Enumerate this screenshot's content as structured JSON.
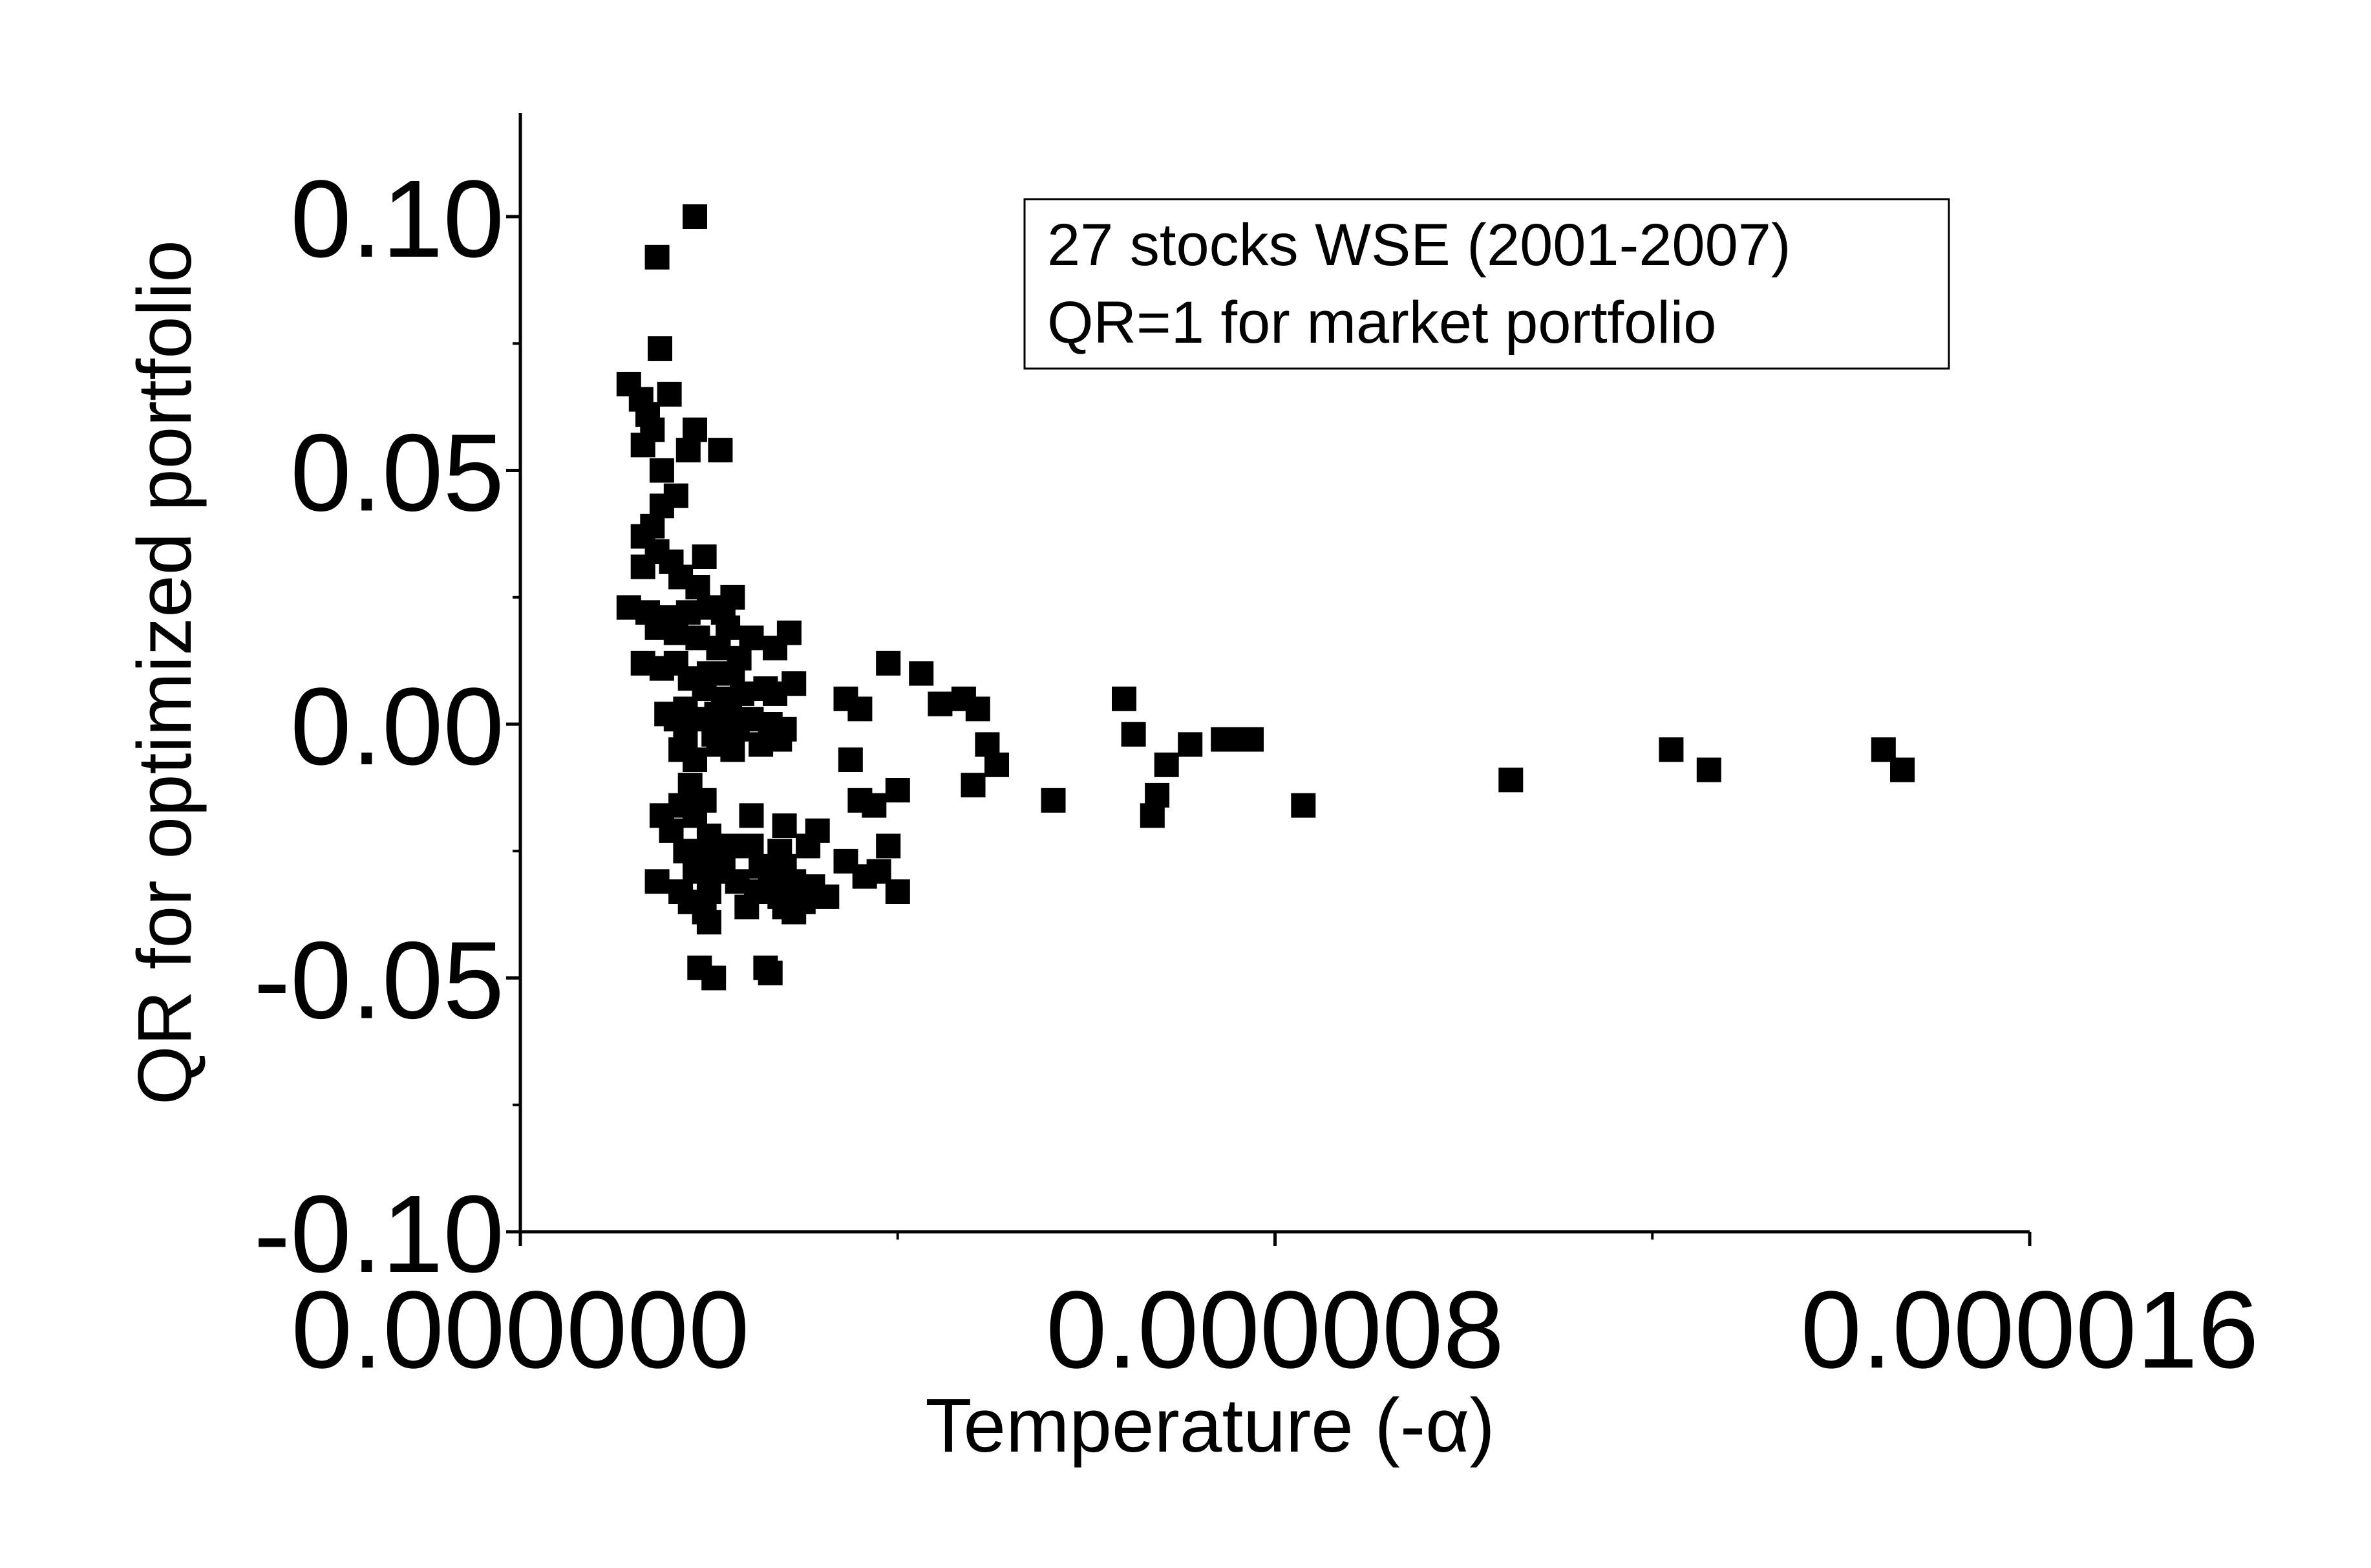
{
  "chart_data": {
    "type": "scatter",
    "title": "",
    "xlabel": "Temperature (-α)",
    "ylabel": "QR for optimized portfolio",
    "xlim": [
      0,
      1.6e-05
    ],
    "ylim": [
      -0.1,
      0.12
    ],
    "x_ticks": [
      {
        "value": 0,
        "label": "0.000000"
      },
      {
        "value": 8e-06,
        "label": "0.000008"
      },
      {
        "value": 1.6e-05,
        "label": "0.000016"
      }
    ],
    "x_minor_ticks": [
      4e-06,
      1.2e-05
    ],
    "y_ticks": [
      {
        "value": 0.1,
        "label": "0.10"
      },
      {
        "value": 0.05,
        "label": "0.05"
      },
      {
        "value": 0.0,
        "label": "0.00"
      },
      {
        "value": -0.05,
        "label": "-0.05"
      },
      {
        "value": -0.1,
        "label": "-0.10"
      }
    ],
    "y_minor_ticks": [
      0.075,
      0.025,
      -0.025,
      -0.075
    ],
    "grid": false,
    "legend_position": "top-right",
    "annotation": [
      "27 stocks WSE (2001-2007)",
      "QR=1 for market portfolio"
    ],
    "marker": {
      "shape": "square",
      "color": "#000000"
    },
    "points": [
      [
        1.85e-06,
        0.1
      ],
      [
        1.45e-06,
        0.092
      ],
      [
        1.48e-06,
        0.074
      ],
      [
        1.15e-06,
        0.067
      ],
      [
        1.28e-06,
        0.064
      ],
      [
        1.58e-06,
        0.065
      ],
      [
        1.35e-06,
        0.061
      ],
      [
        1.4e-06,
        0.058
      ],
      [
        1.3e-06,
        0.055
      ],
      [
        1.85e-06,
        0.058
      ],
      [
        1.78e-06,
        0.054
      ],
      [
        2.12e-06,
        0.054
      ],
      [
        1.5e-06,
        0.05
      ],
      [
        1.65e-06,
        0.045
      ],
      [
        1.5e-06,
        0.043
      ],
      [
        1.4e-06,
        0.039
      ],
      [
        1.3e-06,
        0.037
      ],
      [
        1.45e-06,
        0.034
      ],
      [
        1.6e-06,
        0.032
      ],
      [
        1.95e-06,
        0.033
      ],
      [
        1.3e-06,
        0.031
      ],
      [
        1.7e-06,
        0.029
      ],
      [
        1.88e-06,
        0.027
      ],
      [
        2.25e-06,
        0.025
      ],
      [
        1.15e-06,
        0.023
      ],
      [
        1.35e-06,
        0.022
      ],
      [
        1.58e-06,
        0.021
      ],
      [
        1.78e-06,
        0.022
      ],
      [
        2e-06,
        0.023
      ],
      [
        2.15e-06,
        0.022
      ],
      [
        1.45e-06,
        0.019
      ],
      [
        1.65e-06,
        0.018
      ],
      [
        1.88e-06,
        0.017
      ],
      [
        2.2e-06,
        0.019
      ],
      [
        2.45e-06,
        0.017
      ],
      [
        2.85e-06,
        0.018
      ],
      [
        2.1e-06,
        0.015
      ],
      [
        2.32e-06,
        0.013
      ],
      [
        2.7e-06,
        0.015
      ],
      [
        1.3e-06,
        0.012
      ],
      [
        1.5e-06,
        0.011
      ],
      [
        1.65e-06,
        0.012
      ],
      [
        2e-06,
        0.01
      ],
      [
        2.25e-06,
        0.01
      ],
      [
        1.8e-06,
        0.009
      ],
      [
        1.95e-06,
        0.007
      ],
      [
        2.15e-06,
        0.005
      ],
      [
        2.35e-06,
        0.006
      ],
      [
        2.6e-06,
        0.007
      ],
      [
        2.9e-06,
        0.008
      ],
      [
        2.7e-06,
        0.006
      ],
      [
        1.75e-06,
        0.003
      ],
      [
        2.08e-06,
        0.002
      ],
      [
        2.22e-06,
        0.003
      ],
      [
        1.55e-06,
        0.002
      ],
      [
        1.65e-06,
        0.001
      ],
      [
        1.9e-06,
        0.001
      ],
      [
        2.45e-06,
        0.001
      ],
      [
        2.65e-06,
        0.0
      ],
      [
        2.3e-06,
        -0.001
      ],
      [
        2.05e-06,
        -0.002
      ],
      [
        2.8e-06,
        -0.001
      ],
      [
        1.75e-06,
        -0.003
      ],
      [
        2.1e-06,
        -0.004
      ],
      [
        2.25e-06,
        -0.005
      ],
      [
        2.55e-06,
        -0.004
      ],
      [
        2.75e-06,
        -0.003
      ],
      [
        1.7e-06,
        -0.005
      ],
      [
        1.85e-06,
        -0.007
      ],
      [
        3.9e-06,
        0.012
      ],
      [
        4.25e-06,
        0.01
      ],
      [
        4.45e-06,
        0.004
      ],
      [
        4.7e-06,
        0.005
      ],
      [
        4.85e-06,
        0.003
      ],
      [
        3.45e-06,
        0.005
      ],
      [
        3.6e-06,
        0.003
      ],
      [
        4.95e-06,
        -0.004
      ],
      [
        5.05e-06,
        -0.008
      ],
      [
        4.8e-06,
        -0.012
      ],
      [
        3.5e-06,
        -0.007
      ],
      [
        5.65e-06,
        -0.015
      ],
      [
        3.6e-06,
        -0.015
      ],
      [
        3.75e-06,
        -0.016
      ],
      [
        4e-06,
        -0.013
      ],
      [
        1.8e-06,
        -0.012
      ],
      [
        1.95e-06,
        -0.015
      ],
      [
        1.5e-06,
        -0.018
      ],
      [
        1.7e-06,
        -0.016
      ],
      [
        1.85e-06,
        -0.018
      ],
      [
        2.45e-06,
        -0.018
      ],
      [
        2.8e-06,
        -0.02
      ],
      [
        3.15e-06,
        -0.021
      ],
      [
        1.6e-06,
        -0.021
      ],
      [
        2e-06,
        -0.022
      ],
      [
        2.2e-06,
        -0.024
      ],
      [
        2.45e-06,
        -0.024
      ],
      [
        2.75e-06,
        -0.025
      ],
      [
        3.05e-06,
        -0.024
      ],
      [
        3.9e-06,
        -0.024
      ],
      [
        3.45e-06,
        -0.027
      ],
      [
        1.75e-06,
        -0.025
      ],
      [
        1.95e-06,
        -0.026
      ],
      [
        2.15e-06,
        -0.027
      ],
      [
        2.55e-06,
        -0.028
      ],
      [
        2.8e-06,
        -0.028
      ],
      [
        1.85e-06,
        -0.029
      ],
      [
        2.05e-06,
        -0.029
      ],
      [
        2.3e-06,
        -0.031
      ],
      [
        2.65e-06,
        -0.03
      ],
      [
        2.9e-06,
        -0.031
      ],
      [
        3.1e-06,
        -0.032
      ],
      [
        3.65e-06,
        -0.03
      ],
      [
        3.8e-06,
        -0.029
      ],
      [
        1.45e-06,
        -0.031
      ],
      [
        1.7e-06,
        -0.033
      ],
      [
        2e-06,
        -0.033
      ],
      [
        2.5e-06,
        -0.033
      ],
      [
        2.75e-06,
        -0.034
      ],
      [
        3e-06,
        -0.035
      ],
      [
        3.25e-06,
        -0.034
      ],
      [
        4e-06,
        -0.033
      ],
      [
        1.8e-06,
        -0.035
      ],
      [
        2.4e-06,
        -0.036
      ],
      [
        2.8e-06,
        -0.036
      ],
      [
        2.9e-06,
        -0.037
      ],
      [
        2e-06,
        -0.039
      ],
      [
        1.95e-06,
        -0.037
      ],
      [
        1.9e-06,
        -0.048
      ],
      [
        2.05e-06,
        -0.05
      ],
      [
        2.6e-06,
        -0.048
      ],
      [
        2.65e-06,
        -0.049
      ],
      [
        6.4e-06,
        0.005
      ],
      [
        6.5e-06,
        -0.002
      ],
      [
        7.1e-06,
        -0.004
      ],
      [
        6.85e-06,
        -0.008
      ],
      [
        6.75e-06,
        -0.014
      ],
      [
        6.7e-06,
        -0.018
      ],
      [
        7.45e-06,
        -0.003
      ],
      [
        7.55e-06,
        -0.003
      ],
      [
        7.75e-06,
        -0.003
      ],
      [
        8.3e-06,
        -0.016
      ],
      [
        1.05e-05,
        -0.011
      ],
      [
        1.22e-05,
        -0.005
      ],
      [
        1.26e-05,
        -0.009
      ],
      [
        1.445e-05,
        -0.005
      ],
      [
        1.465e-05,
        -0.009
      ]
    ]
  }
}
